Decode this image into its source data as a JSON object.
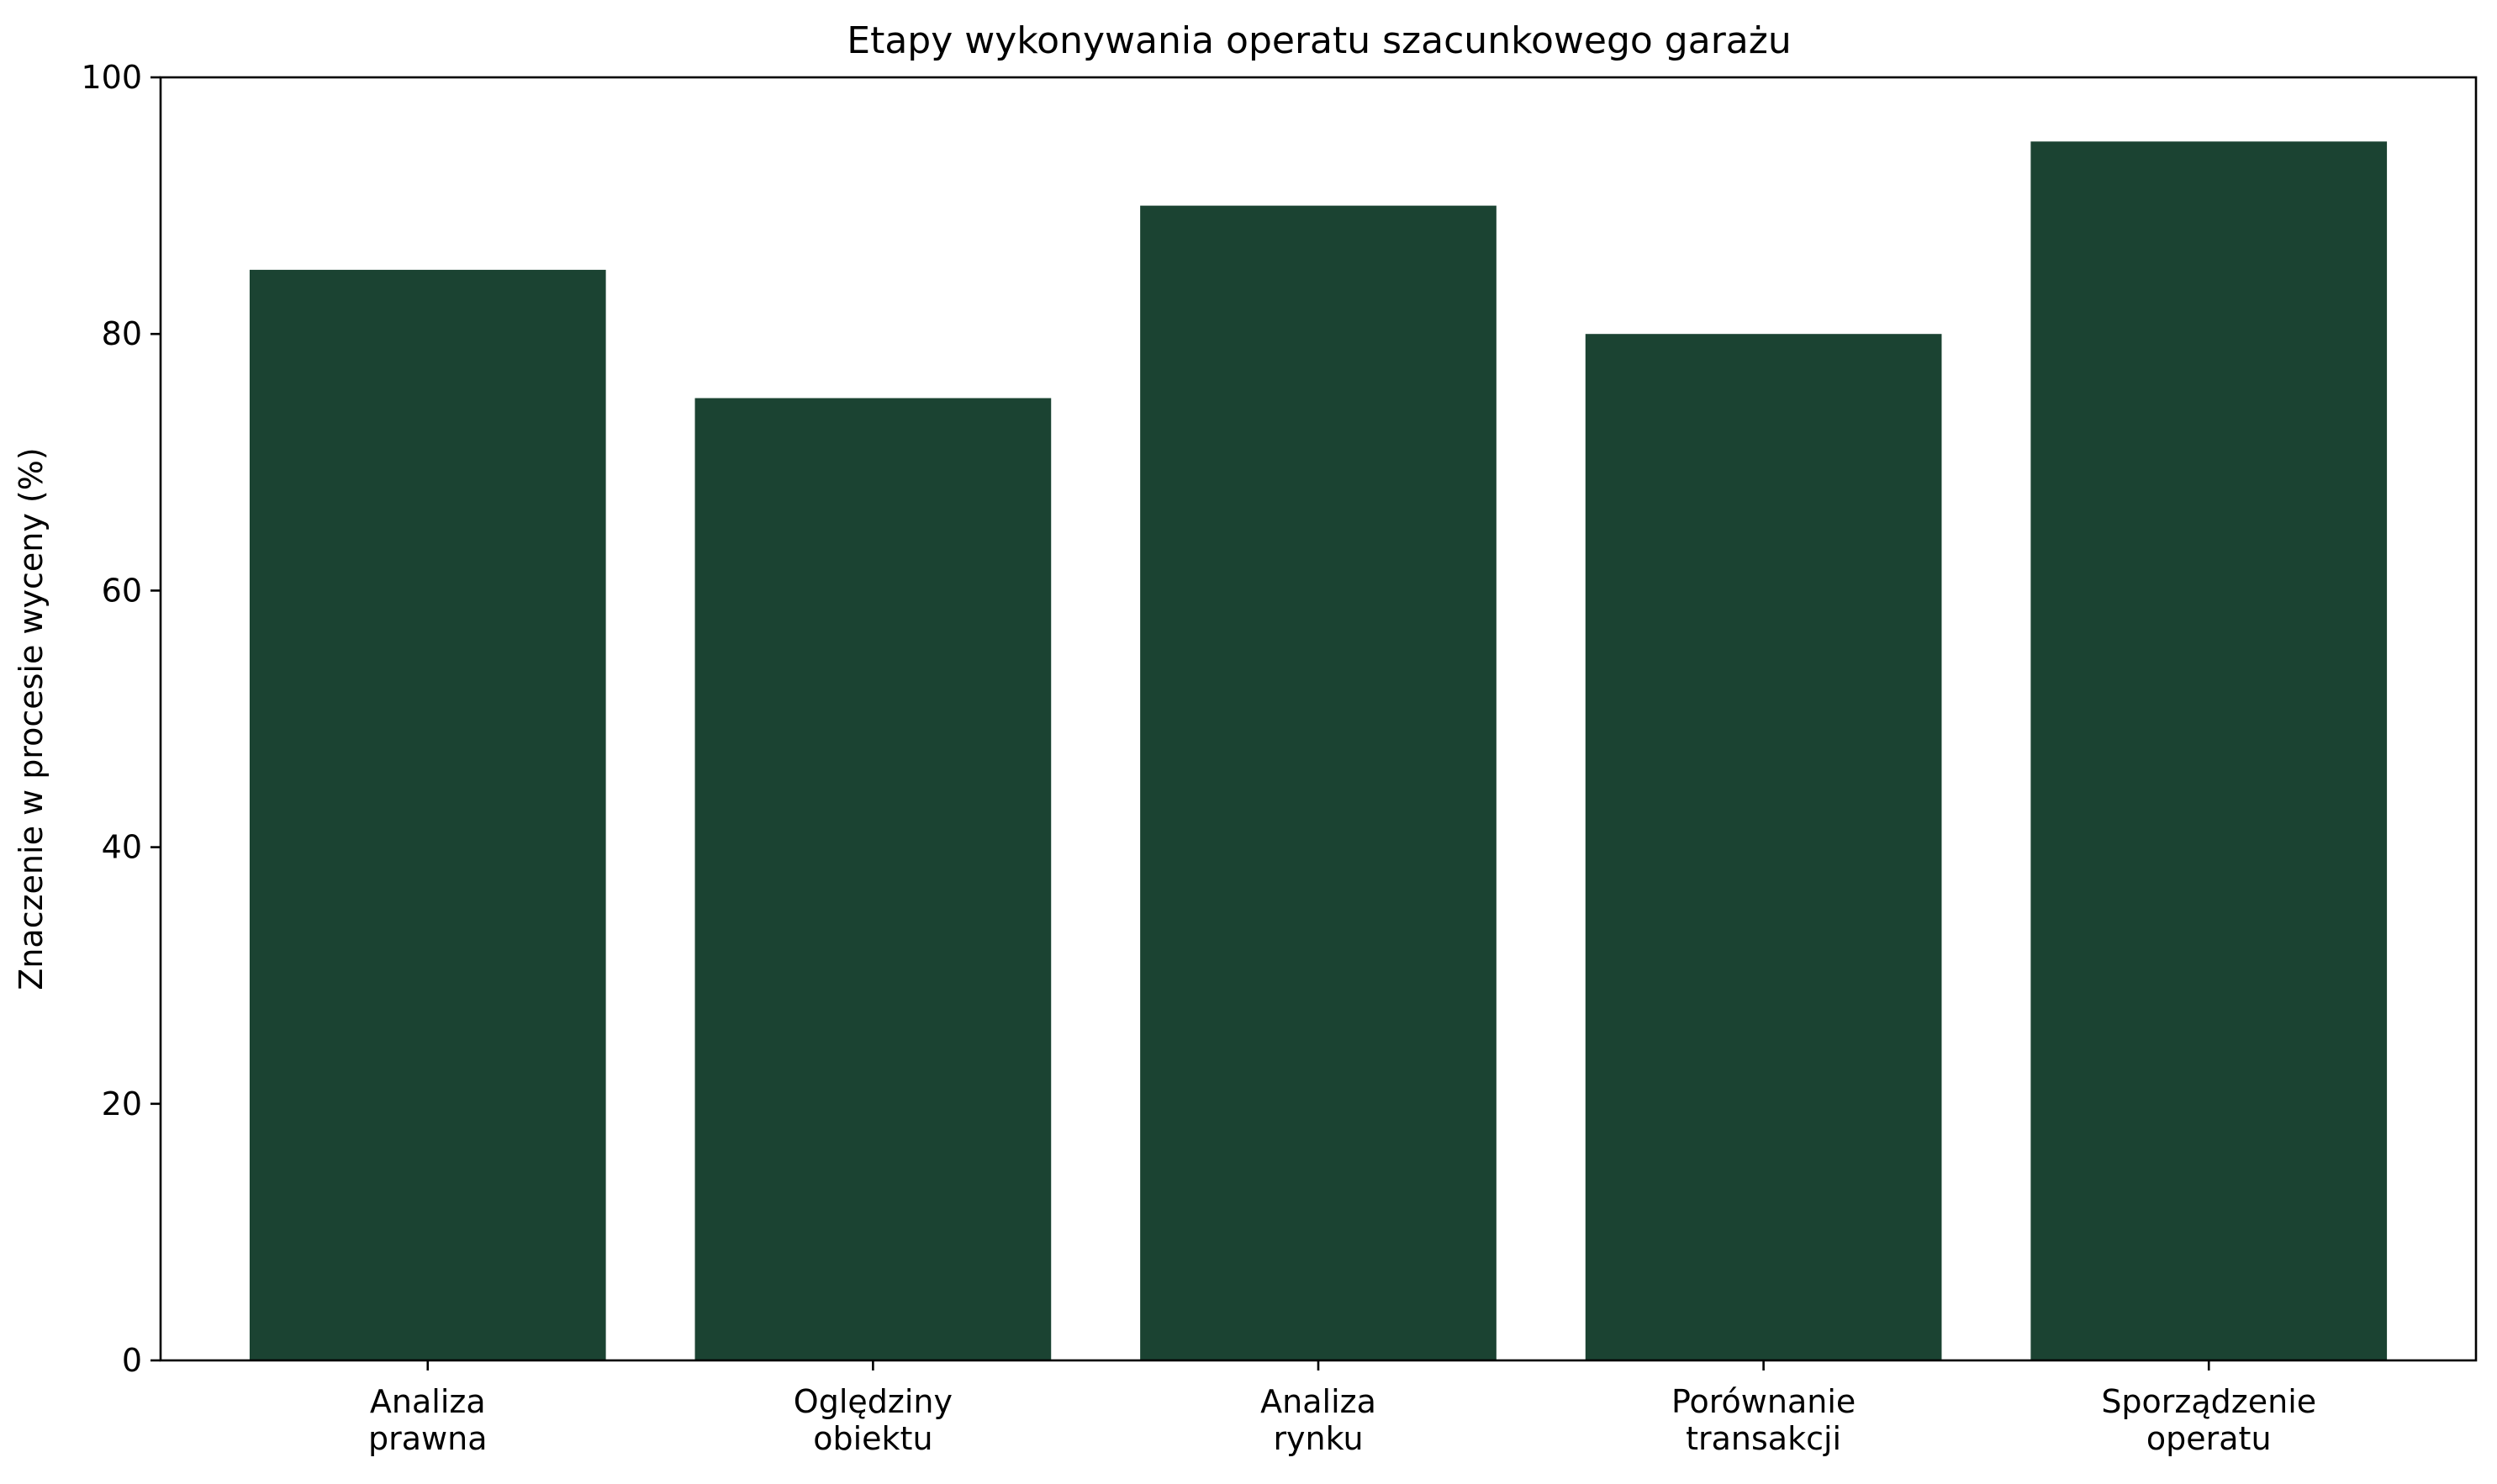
{
  "chart_data": {
    "type": "bar",
    "title": "Etapy wykonywania operatu szacunkowego garażu",
    "xlabel": "",
    "ylabel": "Znaczenie w procesie wyceny (%)",
    "categories": [
      [
        "Analiza",
        "prawna"
      ],
      [
        "Oględziny",
        "obiektu"
      ],
      [
        "Analiza",
        "rynku"
      ],
      [
        "Porównanie",
        "transakcji"
      ],
      [
        "Sporządzenie",
        "operatu"
      ]
    ],
    "values": [
      85,
      75,
      90,
      80,
      95
    ],
    "ylim": [
      0,
      100
    ],
    "yticks": [
      0,
      20,
      40,
      60,
      80,
      100
    ],
    "bar_color": "#1b4332",
    "grid": false,
    "legend": "none"
  }
}
